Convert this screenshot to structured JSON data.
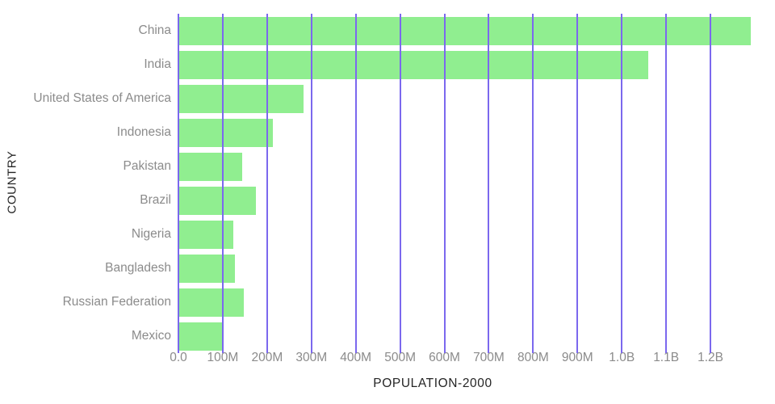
{
  "chart_data": {
    "type": "bar",
    "orientation": "horizontal",
    "title": "",
    "xlabel": "POPULATION-2000",
    "ylabel": "COUNTRY",
    "categories": [
      "China",
      "India",
      "United States of America",
      "Indonesia",
      "Pakistan",
      "Brazil",
      "Nigeria",
      "Bangladesh",
      "Russian Federation",
      "Mexico"
    ],
    "values_millions": [
      1290,
      1060,
      283,
      213,
      143,
      175,
      123,
      128,
      147,
      98
    ],
    "xlim_millions": [
      0,
      1300
    ],
    "x_ticks": [
      {
        "value": 0,
        "label": "0.0"
      },
      {
        "value": 100,
        "label": "100M"
      },
      {
        "value": 200,
        "label": "200M"
      },
      {
        "value": 300,
        "label": "300M"
      },
      {
        "value": 400,
        "label": "400M"
      },
      {
        "value": 500,
        "label": "500M"
      },
      {
        "value": 600,
        "label": "600M"
      },
      {
        "value": 700,
        "label": "700M"
      },
      {
        "value": 800,
        "label": "800M"
      },
      {
        "value": 900,
        "label": "900M"
      },
      {
        "value": 1000,
        "label": "1.0B"
      },
      {
        "value": 1100,
        "label": "1.1B"
      },
      {
        "value": 1200,
        "label": "1.2B"
      }
    ],
    "grid": true,
    "legend": "none",
    "colors": {
      "bar": "#90ee90",
      "gridline": "#7b68ee",
      "tick_label": "#8b8b8b",
      "axis_title": "#252525",
      "background": "#ffffff"
    }
  }
}
